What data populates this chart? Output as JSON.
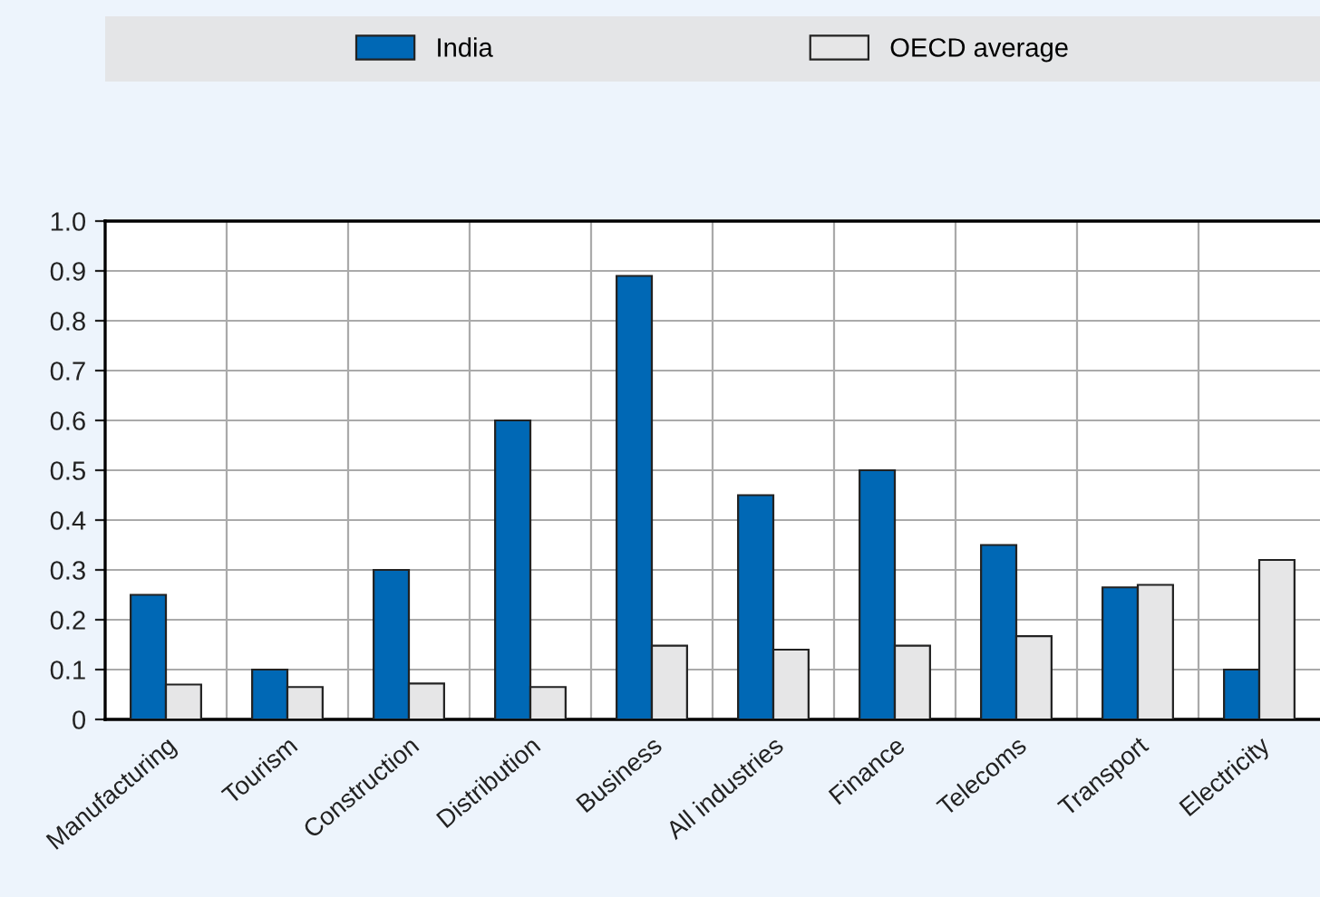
{
  "chart_data": {
    "type": "bar",
    "categories": [
      "Manufacturing",
      "Tourism",
      "Construction",
      "Distribution",
      "Business",
      "All industries",
      "Finance",
      "Telecoms",
      "Transport",
      "Electricity"
    ],
    "series": [
      {
        "name": "India",
        "color": "#0068b5",
        "values": [
          0.25,
          0.1,
          0.3,
          0.6,
          0.89,
          0.45,
          0.5,
          0.35,
          0.265,
          0.1
        ]
      },
      {
        "name": "OECD average",
        "color": "#e6e6e7",
        "values": [
          0.07,
          0.065,
          0.072,
          0.065,
          0.148,
          0.14,
          0.148,
          0.167,
          0.27,
          0.32
        ]
      }
    ],
    "ylim": [
      0,
      1.0
    ],
    "yticks": [
      0,
      {
        "value": 0.1,
        "label": "0.1"
      },
      {
        "value": 0.2,
        "label": "0.2"
      },
      {
        "value": 0.3,
        "label": "0.3"
      },
      {
        "value": 0.4,
        "label": "0.4"
      },
      {
        "value": 0.5,
        "label": "0.5"
      },
      {
        "value": 0.6,
        "label": "0.6"
      },
      {
        "value": 0.7,
        "label": "0.7"
      },
      {
        "value": 0.8,
        "label": "0.8"
      },
      {
        "value": 0.9,
        "label": "0.9"
      },
      {
        "value": 1.0,
        "label": "1.0"
      }
    ],
    "grid": true,
    "legend": "top"
  }
}
